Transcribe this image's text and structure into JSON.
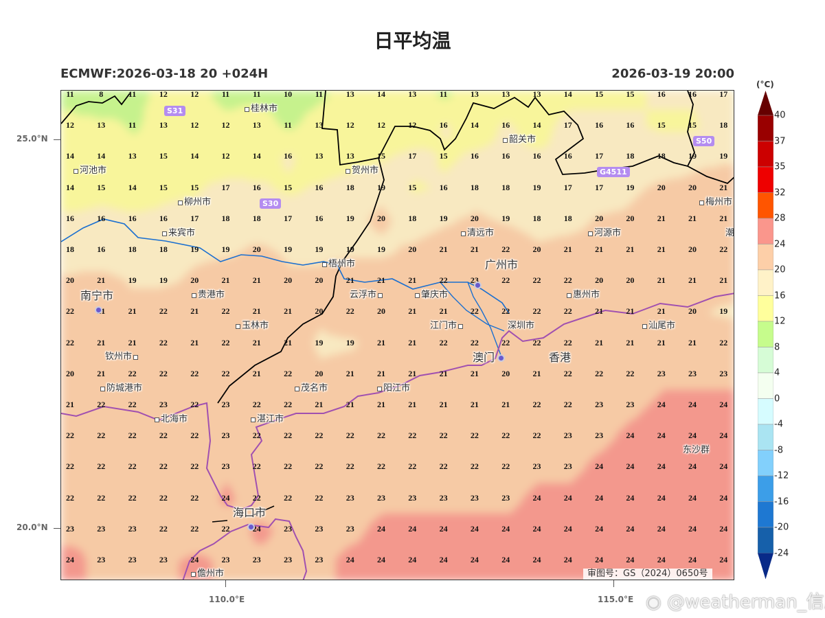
{
  "header": {
    "title": "日平均温",
    "model_run": "ECMWF:2026-03-18 20 +024H",
    "valid_time": "2026-03-19 20:00"
  },
  "axes": {
    "lat_labels": [
      "25.0°N",
      "20.0°N"
    ],
    "lon_labels": [
      "110.0°E",
      "115.0°E"
    ]
  },
  "grid": {
    "unit": "°C",
    "values": [
      [
        11,
        8,
        11,
        12,
        12,
        11,
        11,
        10,
        11,
        13,
        14,
        13,
        11,
        13,
        13,
        13,
        14,
        15,
        15,
        16,
        16,
        17
      ],
      [
        12,
        13,
        11,
        13,
        12,
        12,
        13,
        11,
        13,
        12,
        12,
        12,
        16,
        14,
        16,
        14,
        17,
        16,
        16,
        15,
        15,
        18
      ],
      [
        14,
        14,
        13,
        15,
        14,
        12,
        14,
        16,
        13,
        13,
        15,
        17,
        15,
        16,
        16,
        16,
        16,
        17,
        18,
        18,
        19,
        19
      ],
      [
        14,
        15,
        14,
        15,
        15,
        17,
        16,
        15,
        16,
        18,
        19,
        15,
        16,
        18,
        18,
        19,
        17,
        17,
        19,
        20,
        20,
        21
      ],
      [
        16,
        16,
        16,
        16,
        17,
        18,
        18,
        17,
        16,
        19,
        20,
        18,
        19,
        20,
        19,
        18,
        18,
        20,
        20,
        21,
        21,
        21
      ],
      [
        18,
        16,
        18,
        18,
        19,
        19,
        20,
        19,
        19,
        19,
        19,
        20,
        21,
        21,
        22,
        20,
        21,
        21,
        21,
        21,
        20,
        22
      ],
      [
        20,
        21,
        19,
        19,
        20,
        21,
        21,
        20,
        20,
        21,
        21,
        21,
        22,
        23,
        22,
        22,
        22,
        20,
        20,
        21,
        21,
        21
      ],
      [
        22,
        21,
        21,
        22,
        21,
        22,
        21,
        21,
        20,
        22,
        20,
        21,
        21,
        22,
        22,
        22,
        22,
        21,
        21,
        21,
        20,
        19
      ],
      [
        22,
        21,
        21,
        22,
        21,
        22,
        21,
        21,
        19,
        19,
        21,
        21,
        22,
        22,
        22,
        22,
        22,
        21,
        21,
        21,
        21,
        22
      ],
      [
        20,
        21,
        22,
        22,
        22,
        22,
        21,
        22,
        20,
        21,
        21,
        21,
        21,
        21,
        20,
        21,
        22,
        22,
        22,
        23,
        23,
        23
      ],
      [
        21,
        22,
        22,
        23,
        22,
        23,
        22,
        22,
        21,
        21,
        21,
        21,
        21,
        21,
        21,
        22,
        22,
        23,
        23,
        24,
        24,
        24
      ],
      [
        22,
        22,
        22,
        22,
        22,
        23,
        22,
        22,
        22,
        22,
        22,
        22,
        22,
        22,
        22,
        22,
        23,
        23,
        24,
        24,
        24,
        24
      ],
      [
        22,
        22,
        22,
        22,
        22,
        23,
        22,
        22,
        22,
        22,
        22,
        22,
        22,
        22,
        22,
        23,
        23,
        24,
        24,
        24,
        24,
        24
      ],
      [
        22,
        22,
        22,
        22,
        22,
        24,
        22,
        22,
        22,
        23,
        23,
        23,
        23,
        23,
        23,
        24,
        24,
        24,
        24,
        24,
        24,
        24
      ],
      [
        23,
        23,
        23,
        22,
        22,
        22,
        24,
        23,
        23,
        23,
        24,
        24,
        24,
        24,
        24,
        24,
        24,
        24,
        24,
        24,
        24,
        24
      ],
      [
        24,
        23,
        23,
        23,
        24,
        23,
        23,
        23,
        23,
        24,
        24,
        24,
        24,
        24,
        24,
        24,
        24,
        24,
        24,
        24,
        24,
        24
      ]
    ]
  },
  "cities": [
    "桂林市",
    "河池市",
    "柳州市",
    "贺州市",
    "来宾市",
    "梧州市",
    "南宁市",
    "贵港市",
    "玉林市",
    "云浮市",
    "钦州市",
    "防城港市",
    "北海市",
    "茂名市",
    "阳江市",
    "湛江市",
    "海口市",
    "儋州市",
    "韶关市",
    "清远市",
    "河源市",
    "梅州市",
    "广州市",
    "肇庆市",
    "惠州市",
    "江门市",
    "深圳市",
    "汕尾市",
    "澳门",
    "香港",
    "潮",
    "东沙群"
  ],
  "road_badges": [
    "S31",
    "S30",
    "S50",
    "G4511"
  ],
  "colorbar": {
    "unit_label": "(°C)",
    "levels": [
      40,
      37,
      35,
      32,
      28,
      24,
      20,
      16,
      12,
      8,
      4,
      0,
      -4,
      -8,
      -12,
      -16,
      -20,
      -24
    ],
    "colors": [
      "#990000",
      "#cc0000",
      "#ee0000",
      "#ff5500",
      "#fa968c",
      "#fdcfa8",
      "#fff2c8",
      "#ffff9c",
      "#c6fc8c",
      "#d6fcd6",
      "#f4fff0",
      "#d6fcff",
      "#aae4f2",
      "#82d0fc",
      "#3c9ee8",
      "#1e78d2",
      "#1660aa"
    ],
    "over_color": "#660000",
    "under_color": "#082a88"
  },
  "approval": "审图号：GS（2024）0650号",
  "watermark": "@weatherman_信欣"
}
